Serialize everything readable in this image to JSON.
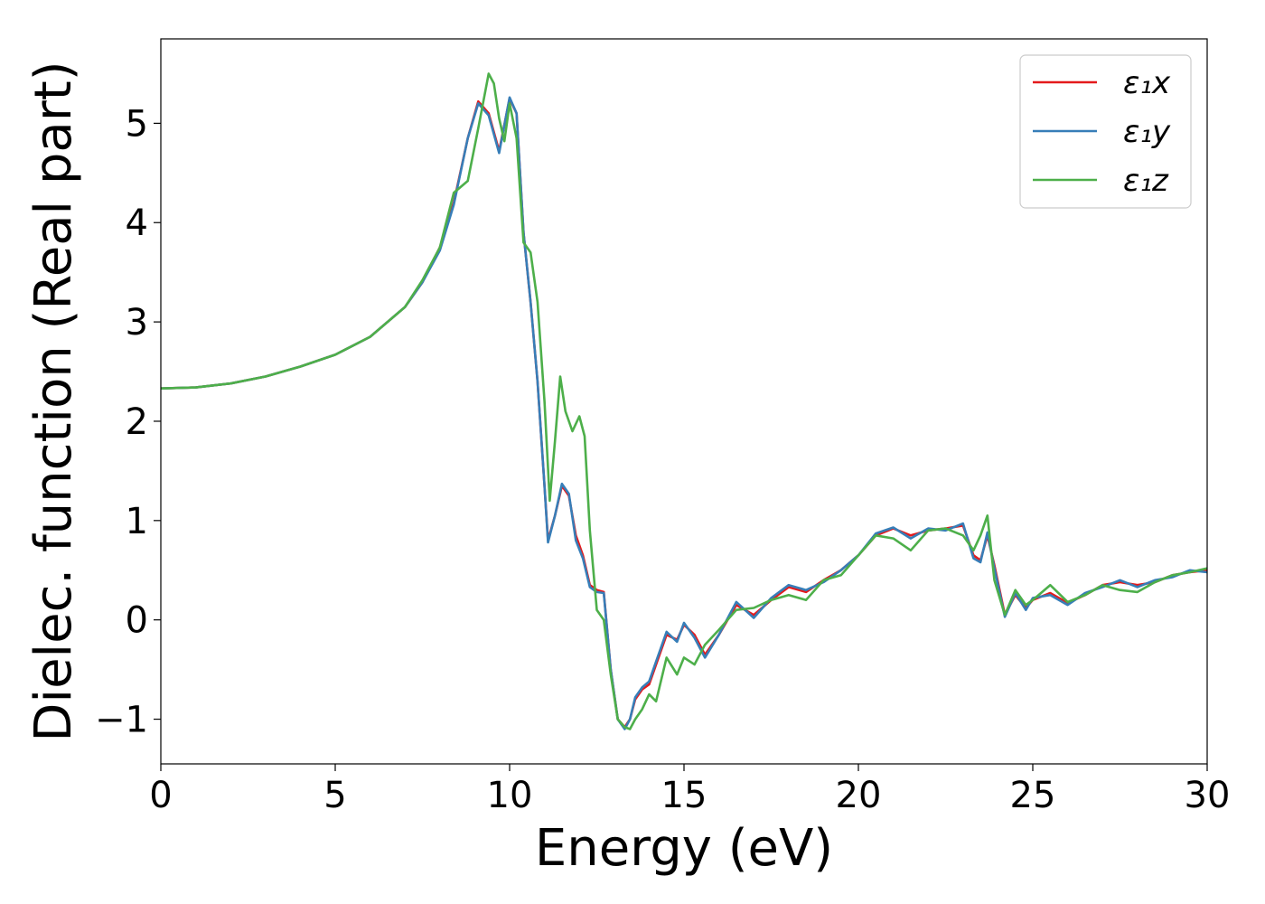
{
  "chart_data": {
    "type": "line",
    "title": "",
    "xlabel": "Energy (eV)",
    "ylabel": "Dielec. function (Real part)",
    "xlim": [
      0,
      30
    ],
    "ylim": [
      -1.45,
      5.85
    ],
    "xticks": [
      0,
      5,
      10,
      15,
      20,
      25,
      30
    ],
    "xtick_labels": [
      "0",
      "5",
      "10",
      "15",
      "20",
      "25",
      "30"
    ],
    "yticks": [
      -1,
      0,
      1,
      2,
      3,
      4,
      5
    ],
    "ytick_labels": [
      "−1",
      "0",
      "1",
      "2",
      "3",
      "4",
      "5"
    ],
    "grid": false,
    "legend_position": "top-right",
    "series": [
      {
        "name": "ε₁x",
        "color": "#e41a1c",
        "x": [
          0,
          1,
          2,
          3,
          4,
          5,
          6,
          7,
          7.5,
          8,
          8.4,
          8.8,
          9.1,
          9.4,
          9.7,
          10.0,
          10.2,
          10.4,
          10.6,
          10.8,
          11.0,
          11.1,
          11.3,
          11.5,
          11.7,
          11.9,
          12.1,
          12.3,
          12.5,
          12.7,
          12.9,
          13.1,
          13.3,
          13.45,
          13.6,
          13.8,
          14.0,
          14.2,
          14.5,
          14.8,
          15.0,
          15.3,
          15.6,
          16.0,
          16.5,
          17.0,
          17.5,
          18.0,
          18.5,
          19.0,
          19.5,
          20.0,
          20.5,
          21.0,
          21.5,
          22.0,
          22.5,
          23.0,
          23.3,
          23.5,
          23.7,
          23.9,
          24.2,
          24.5,
          24.8,
          25.0,
          25.5,
          26.0,
          26.5,
          27.0,
          27.5,
          28.0,
          28.5,
          29.0,
          29.5,
          30.0
        ],
        "y": [
          2.33,
          2.34,
          2.38,
          2.45,
          2.55,
          2.67,
          2.85,
          3.15,
          3.4,
          3.75,
          4.2,
          4.85,
          5.22,
          5.1,
          4.72,
          5.25,
          5.1,
          3.9,
          3.2,
          2.4,
          1.35,
          0.8,
          1.05,
          1.35,
          1.25,
          0.85,
          0.65,
          0.35,
          0.3,
          0.28,
          -0.5,
          -1.0,
          -1.08,
          -1.0,
          -0.8,
          -0.7,
          -0.65,
          -0.45,
          -0.15,
          -0.2,
          -0.05,
          -0.15,
          -0.35,
          -0.15,
          0.15,
          0.05,
          0.2,
          0.33,
          0.28,
          0.4,
          0.5,
          0.65,
          0.85,
          0.92,
          0.85,
          0.9,
          0.92,
          0.95,
          0.65,
          0.6,
          0.85,
          0.55,
          0.05,
          0.25,
          0.12,
          0.2,
          0.27,
          0.17,
          0.25,
          0.35,
          0.38,
          0.35,
          0.38,
          0.45,
          0.48,
          0.5
        ]
      },
      {
        "name": "ε₁y",
        "color": "#377eb8",
        "x": [
          0,
          1,
          2,
          3,
          4,
          5,
          6,
          7,
          7.5,
          8,
          8.4,
          8.8,
          9.1,
          9.4,
          9.7,
          10.0,
          10.2,
          10.4,
          10.6,
          10.8,
          11.0,
          11.1,
          11.3,
          11.5,
          11.7,
          11.9,
          12.1,
          12.3,
          12.5,
          12.7,
          12.9,
          13.1,
          13.3,
          13.45,
          13.6,
          13.8,
          14.0,
          14.2,
          14.5,
          14.8,
          15.0,
          15.3,
          15.6,
          16.0,
          16.5,
          17.0,
          17.5,
          18.0,
          18.5,
          19.0,
          19.5,
          20.0,
          20.5,
          21.0,
          21.5,
          22.0,
          22.5,
          23.0,
          23.3,
          23.5,
          23.7,
          23.9,
          24.2,
          24.5,
          24.8,
          25.0,
          25.5,
          26.0,
          26.5,
          27.0,
          27.5,
          28.0,
          28.5,
          29.0,
          29.5,
          30.0
        ],
        "y": [
          2.33,
          2.34,
          2.38,
          2.45,
          2.55,
          2.67,
          2.85,
          3.15,
          3.4,
          3.72,
          4.18,
          4.85,
          5.2,
          5.08,
          4.7,
          5.26,
          5.1,
          3.9,
          3.2,
          2.4,
          1.35,
          0.78,
          1.05,
          1.37,
          1.27,
          0.8,
          0.62,
          0.33,
          0.28,
          0.27,
          -0.5,
          -1.0,
          -1.1,
          -1.0,
          -0.78,
          -0.68,
          -0.62,
          -0.42,
          -0.12,
          -0.22,
          -0.03,
          -0.18,
          -0.38,
          -0.15,
          0.18,
          0.02,
          0.22,
          0.35,
          0.3,
          0.38,
          0.5,
          0.65,
          0.87,
          0.93,
          0.82,
          0.92,
          0.9,
          0.97,
          0.62,
          0.58,
          0.88,
          0.52,
          0.03,
          0.27,
          0.1,
          0.22,
          0.25,
          0.15,
          0.27,
          0.33,
          0.4,
          0.33,
          0.4,
          0.43,
          0.5,
          0.48
        ]
      },
      {
        "name": "ε₁z",
        "color": "#4daf4a",
        "x": [
          0,
          1,
          2,
          3,
          4,
          5,
          6,
          7,
          7.5,
          8,
          8.4,
          8.8,
          9.1,
          9.4,
          9.55,
          9.7,
          9.85,
          10.0,
          10.2,
          10.4,
          10.6,
          10.8,
          11.0,
          11.15,
          11.3,
          11.45,
          11.6,
          11.8,
          12.0,
          12.15,
          12.3,
          12.5,
          12.7,
          12.9,
          13.1,
          13.3,
          13.45,
          13.6,
          13.8,
          14.0,
          14.2,
          14.5,
          14.8,
          15.0,
          15.3,
          15.6,
          16.0,
          16.5,
          17.0,
          17.5,
          18.0,
          18.5,
          19.0,
          19.5,
          20.0,
          20.5,
          21.0,
          21.5,
          22.0,
          22.5,
          23.0,
          23.3,
          23.5,
          23.7,
          23.9,
          24.2,
          24.5,
          24.8,
          25.0,
          25.5,
          26.0,
          26.5,
          27.0,
          27.5,
          28.0,
          28.5,
          29.0,
          29.5,
          30.0
        ],
        "y": [
          2.33,
          2.34,
          2.38,
          2.45,
          2.55,
          2.67,
          2.85,
          3.15,
          3.42,
          3.75,
          4.3,
          4.42,
          4.95,
          5.5,
          5.4,
          5.05,
          4.82,
          5.2,
          4.85,
          3.8,
          3.7,
          3.2,
          2.2,
          1.2,
          1.8,
          2.45,
          2.1,
          1.9,
          2.05,
          1.85,
          0.9,
          0.1,
          0.0,
          -0.55,
          -1.0,
          -1.08,
          -1.1,
          -1.0,
          -0.9,
          -0.75,
          -0.82,
          -0.38,
          -0.55,
          -0.38,
          -0.45,
          -0.25,
          -0.1,
          0.1,
          0.12,
          0.2,
          0.25,
          0.2,
          0.4,
          0.45,
          0.65,
          0.85,
          0.82,
          0.7,
          0.9,
          0.92,
          0.85,
          0.7,
          0.85,
          1.05,
          0.4,
          0.05,
          0.3,
          0.15,
          0.2,
          0.35,
          0.18,
          0.25,
          0.35,
          0.3,
          0.28,
          0.38,
          0.45,
          0.48,
          0.52
        ]
      }
    ]
  }
}
